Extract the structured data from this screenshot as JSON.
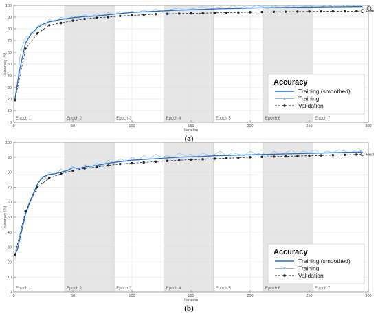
{
  "chart_data": [
    {
      "type": "line",
      "caption": "(a)",
      "xlabel": "Iteration",
      "ylabel": "Accuracy (%)",
      "xlim": [
        0,
        300
      ],
      "ylim": [
        0,
        100
      ],
      "xticks": [
        0,
        50,
        100,
        150,
        200,
        250,
        300
      ],
      "yticks": [
        0,
        10,
        20,
        30,
        40,
        50,
        60,
        70,
        80,
        90,
        100
      ],
      "grid": true,
      "legend": {
        "title": "Accuracy",
        "position": "bottom-right",
        "entries": [
          "Training (smoothed)",
          "Training",
          "Validation"
        ]
      },
      "epoch_bands": [
        {
          "label": "Epoch 1",
          "start": 0,
          "end": 43,
          "shaded": false
        },
        {
          "label": "Epoch 2",
          "start": 43,
          "end": 85,
          "shaded": true
        },
        {
          "label": "Epoch 3",
          "start": 85,
          "end": 127,
          "shaded": false
        },
        {
          "label": "Epoch 4",
          "start": 127,
          "end": 169,
          "shaded": true
        },
        {
          "label": "Epoch 5",
          "start": 169,
          "end": 211,
          "shaded": false
        },
        {
          "label": "Epoch 6",
          "start": 211,
          "end": 253,
          "shaded": true
        },
        {
          "label": "Epoch 7",
          "start": 253,
          "end": 295,
          "shaded": false
        }
      ],
      "final_label": "Final",
      "series": [
        {
          "name": "Training (smoothed)",
          "x": [
            1,
            5,
            10,
            15,
            20,
            25,
            30,
            40,
            50,
            60,
            70,
            80,
            90,
            100,
            110,
            120,
            130,
            140,
            150,
            160,
            170,
            180,
            190,
            200,
            210,
            220,
            230,
            240,
            250,
            260,
            270,
            280,
            290,
            295
          ],
          "y": [
            20,
            45,
            68,
            76,
            81,
            84,
            86,
            88,
            89.5,
            90.5,
            91,
            92,
            93,
            94,
            94.5,
            95,
            95.5,
            96,
            96.3,
            96.6,
            97,
            97.3,
            97.5,
            97.8,
            98,
            98.2,
            98.3,
            98.5,
            98.6,
            98.7,
            98.8,
            98.9,
            99,
            99
          ]
        },
        {
          "name": "Training",
          "x": [
            1,
            3,
            5,
            7,
            9,
            11,
            13,
            15,
            17,
            20,
            23,
            26,
            30,
            35,
            40,
            45,
            50,
            55,
            60,
            65,
            70,
            75,
            80,
            85,
            90,
            95,
            100,
            105,
            110,
            115,
            120,
            125,
            130,
            135,
            140,
            145,
            150,
            155,
            160,
            165,
            170,
            175,
            180,
            185,
            190,
            195,
            200,
            205,
            210,
            215,
            220,
            225,
            230,
            235,
            240,
            245,
            250,
            255,
            260,
            265,
            270,
            275,
            280,
            285,
            290,
            295
          ],
          "y": [
            18,
            30,
            55,
            64,
            70,
            74,
            73,
            78,
            76,
            82,
            84,
            83,
            88,
            86,
            90,
            88,
            91,
            89,
            92,
            90,
            93,
            91,
            94,
            92,
            95,
            93,
            95,
            94,
            96,
            94,
            97,
            95,
            96,
            97,
            98,
            96,
            97,
            98,
            99,
            97,
            98,
            99,
            97,
            100,
            98,
            99,
            98,
            100,
            99,
            97,
            100,
            98,
            99,
            100,
            98,
            99,
            100,
            98,
            99,
            100,
            99,
            98,
            100,
            99,
            100,
            99
          ]
        },
        {
          "name": "Validation",
          "x": [
            1,
            10,
            20,
            30,
            40,
            50,
            60,
            70,
            80,
            90,
            100,
            110,
            120,
            130,
            140,
            150,
            160,
            170,
            180,
            190,
            200,
            210,
            220,
            230,
            240,
            250,
            260,
            270,
            280,
            290,
            295
          ],
          "y": [
            19,
            63,
            76,
            83,
            85,
            87,
            88.5,
            89.5,
            90,
            91,
            91.5,
            92,
            92.5,
            92.8,
            93,
            93.2,
            93.4,
            93.6,
            93.8,
            94,
            94.2,
            94.4,
            94.5,
            94.6,
            94.7,
            94.8,
            94.9,
            95,
            95,
            95.1,
            95.2
          ]
        }
      ]
    },
    {
      "type": "line",
      "caption": "(b)",
      "xlabel": "Iteration",
      "ylabel": "Accuracy (%)",
      "xlim": [
        0,
        300
      ],
      "ylim": [
        0,
        100
      ],
      "xticks": [
        0,
        50,
        100,
        150,
        200,
        250,
        300
      ],
      "yticks": [
        0,
        10,
        20,
        30,
        40,
        50,
        60,
        70,
        80,
        90,
        100
      ],
      "grid": true,
      "legend": {
        "title": "Accuracy",
        "position": "bottom-right",
        "entries": [
          "Training (smoothed)",
          "Training",
          "Validation"
        ]
      },
      "epoch_bands": [
        {
          "label": "Epoch 1",
          "start": 0,
          "end": 43,
          "shaded": false
        },
        {
          "label": "Epoch 2",
          "start": 43,
          "end": 85,
          "shaded": true
        },
        {
          "label": "Epoch 3",
          "start": 85,
          "end": 127,
          "shaded": false
        },
        {
          "label": "Epoch 4",
          "start": 127,
          "end": 169,
          "shaded": true
        },
        {
          "label": "Epoch 5",
          "start": 169,
          "end": 211,
          "shaded": false
        },
        {
          "label": "Epoch 6",
          "start": 211,
          "end": 253,
          "shaded": true
        },
        {
          "label": "Epoch 7",
          "start": 253,
          "end": 295,
          "shaded": false
        }
      ],
      "final_label": "Final",
      "series": [
        {
          "name": "Training (smoothed)",
          "x": [
            1,
            3,
            5,
            8,
            10,
            15,
            20,
            25,
            30,
            35,
            40,
            45,
            50,
            55,
            60,
            65,
            70,
            80,
            90,
            100,
            110,
            120,
            130,
            140,
            150,
            160,
            170,
            180,
            190,
            200,
            210,
            220,
            230,
            240,
            250,
            260,
            270,
            280,
            290,
            295
          ],
          "y": [
            25,
            28,
            35,
            45,
            52,
            63,
            72,
            77,
            78.5,
            79,
            80,
            81,
            83,
            82.5,
            83.5,
            84,
            84.5,
            86,
            87,
            88,
            88.5,
            89,
            89.5,
            90,
            90.3,
            90.5,
            91,
            91.2,
            91.4,
            91.6,
            91.8,
            92,
            92.2,
            92.4,
            92.6,
            92.8,
            93,
            93.2,
            93.4,
            93.5
          ]
        },
        {
          "name": "Training",
          "x": [
            1,
            3,
            5,
            7,
            9,
            11,
            13,
            15,
            17,
            20,
            23,
            26,
            30,
            35,
            40,
            45,
            50,
            55,
            60,
            65,
            70,
            75,
            80,
            85,
            90,
            95,
            100,
            105,
            110,
            115,
            120,
            125,
            130,
            135,
            140,
            145,
            150,
            155,
            160,
            165,
            170,
            175,
            180,
            185,
            190,
            195,
            200,
            205,
            210,
            215,
            220,
            225,
            230,
            235,
            240,
            245,
            250,
            255,
            260,
            265,
            270,
            275,
            280,
            285,
            290,
            295
          ],
          "y": [
            22,
            30,
            38,
            44,
            50,
            55,
            60,
            62,
            66,
            72,
            76,
            75,
            80,
            78,
            82,
            80,
            84,
            81,
            85,
            83,
            86,
            84,
            88,
            86,
            89,
            87,
            90,
            88,
            91,
            89,
            92,
            90,
            91,
            90,
            93,
            91,
            92,
            90,
            93,
            91,
            92,
            94,
            91,
            93,
            92,
            91,
            94,
            92,
            93,
            91,
            94,
            92,
            93,
            95,
            92,
            94,
            93,
            95,
            92,
            94,
            93,
            95,
            94,
            93,
            95,
            94
          ]
        },
        {
          "name": "Validation",
          "x": [
            1,
            10,
            20,
            30,
            40,
            50,
            60,
            70,
            80,
            90,
            100,
            110,
            120,
            130,
            140,
            150,
            160,
            170,
            180,
            190,
            200,
            210,
            220,
            230,
            240,
            250,
            260,
            270,
            280,
            290,
            295
          ],
          "y": [
            25,
            54,
            70,
            76,
            79,
            81,
            82.5,
            83.5,
            84.5,
            85.5,
            86,
            86.5,
            87,
            87.5,
            88,
            88.3,
            88.6,
            89,
            89.3,
            89.6,
            90,
            90.2,
            90.4,
            90.6,
            90.8,
            91,
            91.2,
            91.4,
            91.6,
            91.8,
            92
          ]
        }
      ]
    }
  ],
  "colors": {
    "smoothed": "#1f6fc6",
    "training": "#8fb8e6",
    "validation": "#222222",
    "band": "#e6e6e6",
    "grid": "#dddddd"
  }
}
